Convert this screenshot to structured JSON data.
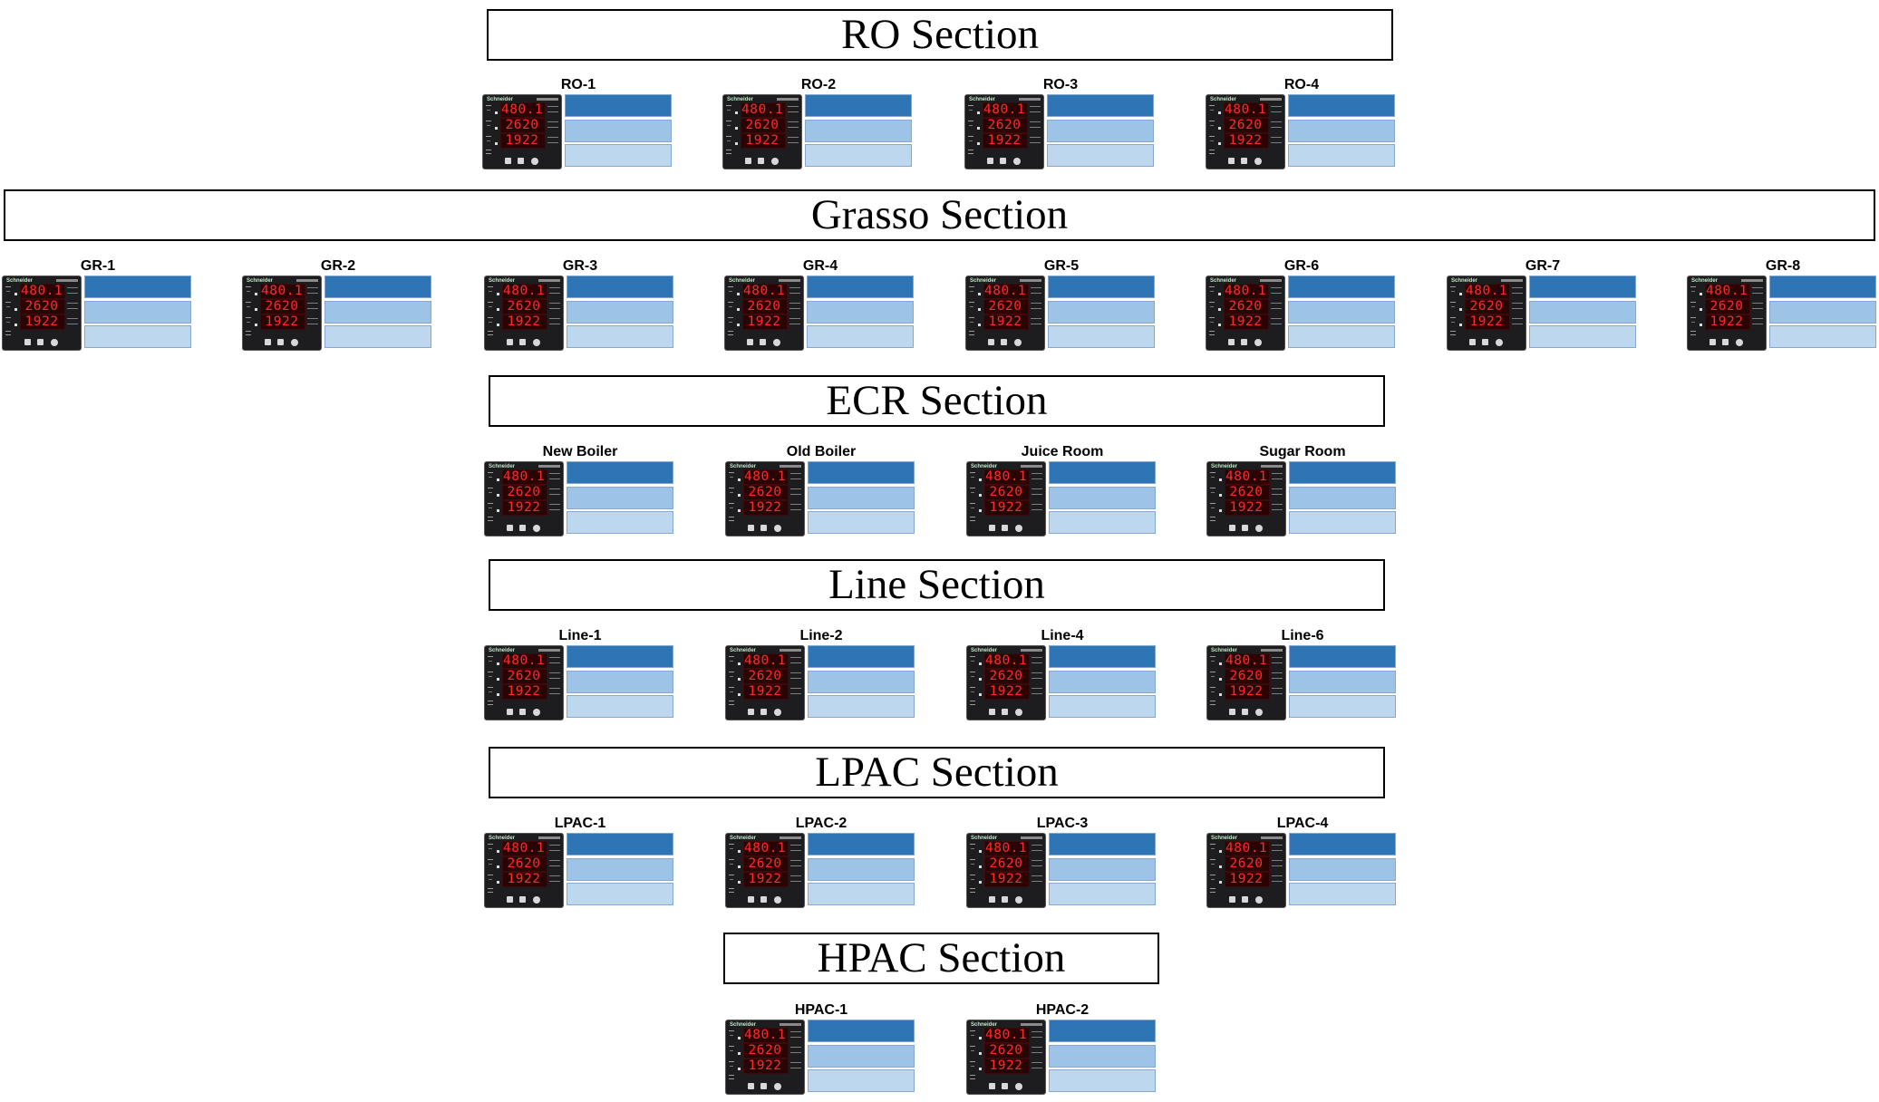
{
  "colors": {
    "bar_dark": "#2e75b6",
    "bar_mid": "#9dc3e6",
    "bar_light": "#bdd7ee",
    "digits": "#ff2a2a",
    "face": "#1d1d1f"
  },
  "meter_face": {
    "brand": "Schneider",
    "digits": [
      "480.1",
      "2620",
      "1922"
    ]
  },
  "sections": [
    {
      "title": "RO Section",
      "meters": [
        "RO-1",
        "RO-2",
        "RO-3",
        "RO-4"
      ]
    },
    {
      "title": "Grasso Section",
      "meters": [
        "GR-1",
        "GR-2",
        "GR-3",
        "GR-4",
        "GR-5",
        "GR-6",
        "GR-7",
        "GR-8"
      ]
    },
    {
      "title": "ECR Section",
      "meters": [
        "New Boiler",
        "Old Boiler",
        "Juice Room",
        "Sugar Room"
      ]
    },
    {
      "title": "Line Section",
      "meters": [
        "Line-1",
        "Line-2",
        "Line-4",
        "Line-6"
      ]
    },
    {
      "title": "LPAC Section",
      "meters": [
        "LPAC-1",
        "LPAC-2",
        "LPAC-3",
        "LPAC-4"
      ]
    },
    {
      "title": "HPAC Section",
      "meters": [
        "HPAC-1",
        "HPAC-2"
      ]
    }
  ]
}
